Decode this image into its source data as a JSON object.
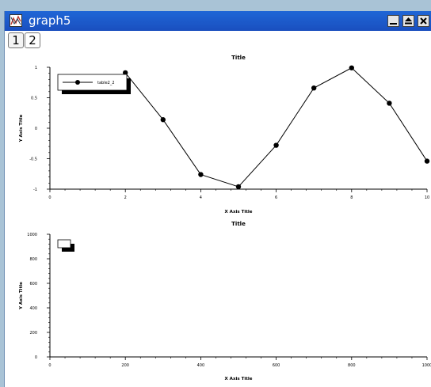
{
  "window": {
    "title": "graph5",
    "icon": "graph-window-icon",
    "buttons": [
      "minimize-icon",
      "maximize-icon",
      "close-icon"
    ]
  },
  "tabs": [
    {
      "label": "1",
      "active": false
    },
    {
      "label": "2",
      "active": true
    }
  ],
  "colors": {
    "titlebar": "#1f66d6",
    "desktop": "#a9c3d6",
    "plot_line": "#000000"
  },
  "chart_data": [
    {
      "type": "line",
      "title": "Title",
      "xlabel": "X Axis Title",
      "ylabel": "Y Axis Title",
      "xlim": [
        0,
        10
      ],
      "ylim": [
        -1,
        1
      ],
      "xticks": [
        "0",
        "2",
        "4",
        "6",
        "8",
        "10"
      ],
      "yticks": [
        "1",
        "0.5",
        "0",
        "-0.5",
        "-1"
      ],
      "legend": "top-left",
      "series": [
        {
          "name": "table2_2",
          "x": [
            2,
            3,
            4,
            5,
            6,
            7,
            8,
            9,
            10
          ],
          "y": [
            0.91,
            0.14,
            -0.76,
            -0.96,
            -0.28,
            0.66,
            0.99,
            0.41,
            -0.54
          ]
        }
      ]
    },
    {
      "type": "line",
      "title": "Title",
      "xlabel": "X Axis Title",
      "ylabel": "Y Axis Title",
      "xlim": [
        0,
        1000
      ],
      "ylim": [
        0,
        1000
      ],
      "xticks": [
        "0",
        "200",
        "400",
        "600",
        "800",
        "1000"
      ],
      "yticks": [
        "1000",
        "800",
        "600",
        "400",
        "200",
        "0"
      ],
      "legend": "top-left",
      "series": []
    }
  ]
}
